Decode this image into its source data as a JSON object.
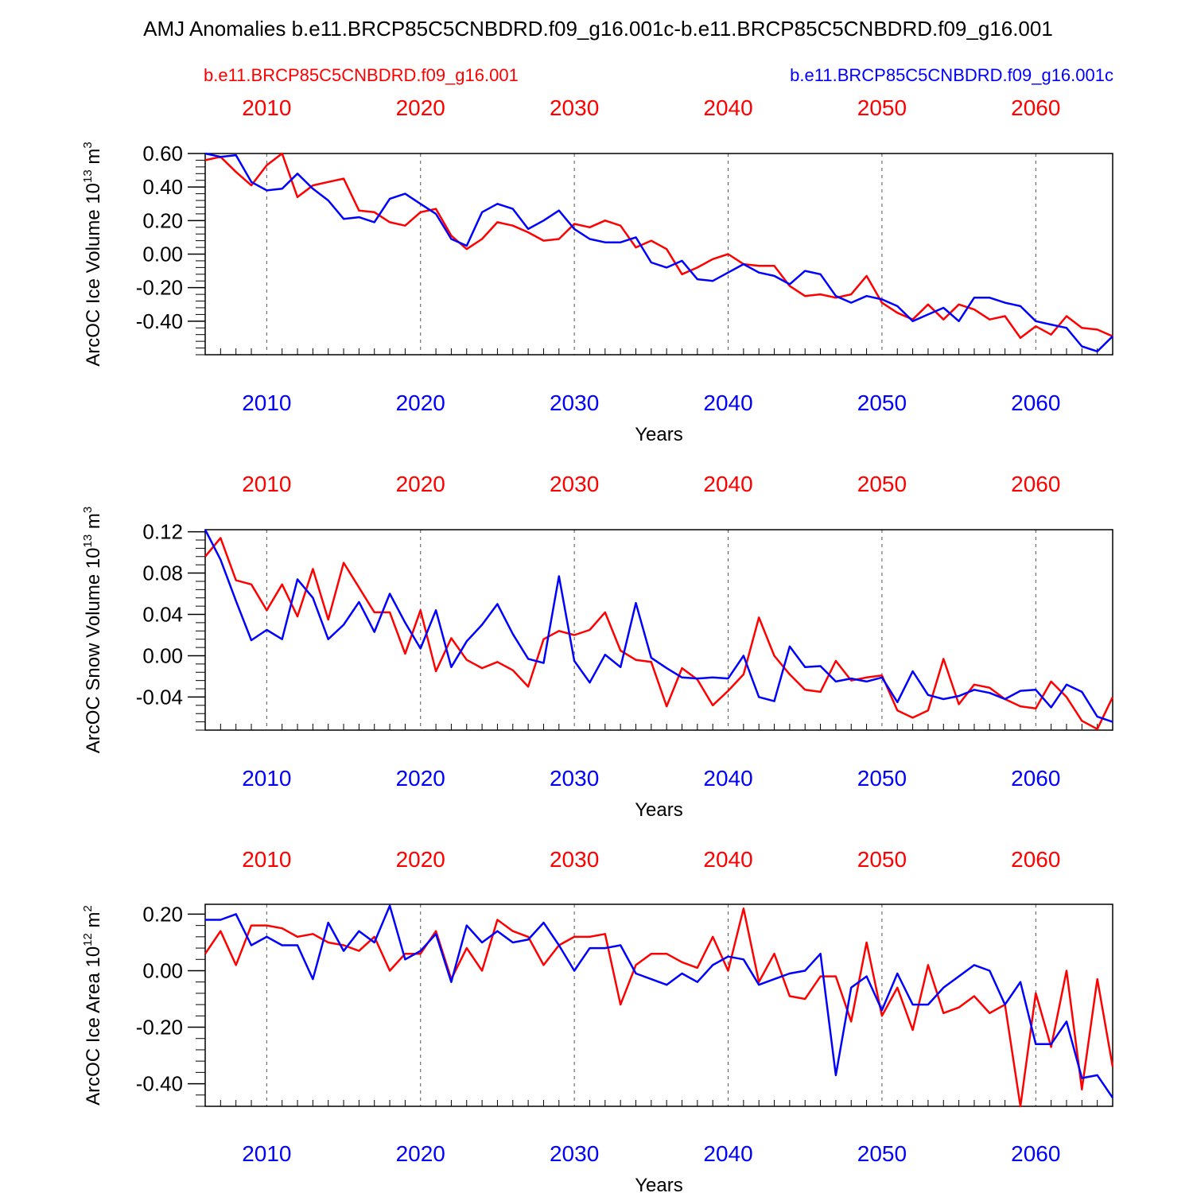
{
  "title": "AMJ Anomalies b.e11.BRCP85C5CNBDRD.f09_g16.001c-b.e11.BRCP85C5CNBDRD.f09_g16.001",
  "legend": {
    "red_label": "b.e11.BRCP85C5CNBDRD.f09_g16.001",
    "blue_label": "b.e11.BRCP85C5CNBDRD.f09_g16.001c"
  },
  "colors": {
    "red": "#ff0000",
    "blue": "#0000ff",
    "axis": "#000000",
    "grid": "#555555"
  },
  "chart_data": [
    {
      "type": "line",
      "ylabel": "ArcOC Ice Volume 10",
      "ylabel_exp": "13",
      "ylabel_unit": " m",
      "ylabel_unit_exp": "3",
      "xlabel": "Years",
      "xlim": [
        2006,
        2065
      ],
      "ylim": [
        -0.6,
        0.6
      ],
      "yticks": [
        0.6,
        0.4,
        0.2,
        0.0,
        -0.2,
        -0.4
      ],
      "ytick_labels": [
        "0.60",
        "0.40",
        "0.20",
        "0.00",
        "-0.20",
        "-0.40"
      ],
      "yminor_step": 0.04,
      "xticks": [
        2010,
        2020,
        2030,
        2040,
        2050,
        2060
      ],
      "xtick_labels": [
        "2010",
        "2020",
        "2030",
        "2040",
        "2050",
        "2060"
      ],
      "x_start": 2006,
      "series": [
        {
          "name": "b.e11.BRCP85C5CNBDRD.f09_g16.001",
          "color": "red",
          "values": [
            0.56,
            0.58,
            0.49,
            0.41,
            0.53,
            0.6,
            0.34,
            0.41,
            0.43,
            0.45,
            0.26,
            0.25,
            0.19,
            0.17,
            0.25,
            0.27,
            0.11,
            0.03,
            0.09,
            0.19,
            0.17,
            0.13,
            0.08,
            0.09,
            0.18,
            0.16,
            0.2,
            0.17,
            0.04,
            0.08,
            0.03,
            -0.12,
            -0.08,
            -0.03,
            0.0,
            -0.06,
            -0.07,
            -0.07,
            -0.19,
            -0.25,
            -0.24,
            -0.26,
            -0.24,
            -0.13,
            -0.29,
            -0.35,
            -0.39,
            -0.3,
            -0.39,
            -0.3,
            -0.33,
            -0.39,
            -0.37,
            -0.5,
            -0.43,
            -0.48,
            -0.37,
            -0.44,
            -0.45,
            -0.49
          ]
        },
        {
          "name": "b.e11.BRCP85C5CNBDRD.f09_g16.001c",
          "color": "blue",
          "values": [
            0.6,
            0.58,
            0.59,
            0.43,
            0.38,
            0.39,
            0.48,
            0.39,
            0.32,
            0.21,
            0.22,
            0.19,
            0.33,
            0.36,
            0.3,
            0.24,
            0.09,
            0.05,
            0.25,
            0.3,
            0.27,
            0.15,
            0.2,
            0.26,
            0.15,
            0.09,
            0.07,
            0.07,
            0.1,
            -0.05,
            -0.08,
            -0.04,
            -0.15,
            -0.16,
            -0.11,
            -0.06,
            -0.11,
            -0.13,
            -0.18,
            -0.1,
            -0.12,
            -0.25,
            -0.29,
            -0.25,
            -0.27,
            -0.31,
            -0.4,
            -0.36,
            -0.32,
            -0.4,
            -0.26,
            -0.26,
            -0.29,
            -0.31,
            -0.4,
            -0.42,
            -0.44,
            -0.55,
            -0.58,
            -0.49
          ]
        }
      ]
    },
    {
      "type": "line",
      "ylabel": "ArcOC Snow Volume 10",
      "ylabel_exp": "13",
      "ylabel_unit": " m",
      "ylabel_unit_exp": "3",
      "xlabel": "Years",
      "xlim": [
        2006,
        2065
      ],
      "ylim": [
        -0.072,
        0.122
      ],
      "yticks": [
        0.12,
        0.08,
        0.04,
        0.0,
        -0.04
      ],
      "ytick_labels": [
        "0.12",
        "0.08",
        "0.04",
        "0.00",
        "-0.04"
      ],
      "yminor_step": 0.008,
      "xticks": [
        2010,
        2020,
        2030,
        2040,
        2050,
        2060
      ],
      "xtick_labels": [
        "2010",
        "2020",
        "2030",
        "2040",
        "2050",
        "2060"
      ],
      "x_start": 2006,
      "series": [
        {
          "name": "b.e11.BRCP85C5CNBDRD.f09_g16.001",
          "color": "red",
          "values": [
            0.096,
            0.114,
            0.073,
            0.069,
            0.044,
            0.069,
            0.038,
            0.084,
            0.035,
            0.09,
            0.066,
            0.042,
            0.042,
            0.002,
            0.044,
            -0.015,
            0.017,
            -0.004,
            -0.012,
            -0.006,
            -0.014,
            -0.03,
            0.016,
            0.024,
            0.02,
            0.025,
            0.042,
            0.005,
            -0.004,
            -0.006,
            -0.049,
            -0.012,
            -0.023,
            -0.048,
            -0.034,
            -0.018,
            0.037,
            0.0,
            -0.018,
            -0.033,
            -0.035,
            -0.005,
            -0.024,
            -0.021,
            -0.019,
            -0.053,
            -0.06,
            -0.053,
            -0.003,
            -0.047,
            -0.028,
            -0.031,
            -0.042,
            -0.049,
            -0.051,
            -0.025,
            -0.04,
            -0.063,
            -0.071,
            -0.04
          ]
        },
        {
          "name": "b.e11.BRCP85C5CNBDRD.f09_g16.001c",
          "color": "blue",
          "values": [
            0.122,
            0.093,
            0.053,
            0.015,
            0.025,
            0.016,
            0.074,
            0.056,
            0.016,
            0.03,
            0.052,
            0.023,
            0.06,
            0.032,
            0.007,
            0.044,
            -0.011,
            0.014,
            0.03,
            0.05,
            0.021,
            -0.003,
            -0.007,
            0.077,
            -0.005,
            -0.026,
            0.001,
            -0.011,
            0.051,
            -0.002,
            -0.012,
            -0.021,
            -0.022,
            -0.021,
            -0.022,
            0.0,
            -0.04,
            -0.044,
            0.009,
            -0.011,
            -0.01,
            -0.025,
            -0.022,
            -0.025,
            -0.021,
            -0.045,
            -0.015,
            -0.038,
            -0.042,
            -0.039,
            -0.033,
            -0.036,
            -0.042,
            -0.034,
            -0.033,
            -0.05,
            -0.028,
            -0.035,
            -0.059,
            -0.064
          ]
        }
      ]
    },
    {
      "type": "line",
      "ylabel": "ArcOC Ice Area 10",
      "ylabel_exp": "12",
      "ylabel_unit": " m",
      "ylabel_unit_exp": "2",
      "xlabel": "Years",
      "xlim": [
        2006,
        2065
      ],
      "ylim": [
        -0.48,
        0.235
      ],
      "yticks": [
        0.2,
        0.0,
        -0.2,
        -0.4
      ],
      "ytick_labels": [
        "0.20",
        "0.00",
        "-0.20",
        "-0.40"
      ],
      "yminor_step": 0.04,
      "xticks": [
        2010,
        2020,
        2030,
        2040,
        2050,
        2060
      ],
      "xtick_labels": [
        "2010",
        "2020",
        "2030",
        "2040",
        "2050",
        "2060"
      ],
      "x_start": 2006,
      "series": [
        {
          "name": "b.e11.BRCP85C5CNBDRD.f09_g16.001",
          "color": "red",
          "values": [
            0.06,
            0.14,
            0.02,
            0.16,
            0.16,
            0.15,
            0.12,
            0.13,
            0.1,
            0.09,
            0.07,
            0.12,
            0.0,
            0.06,
            0.06,
            0.14,
            -0.03,
            0.08,
            0.0,
            0.18,
            0.14,
            0.12,
            0.02,
            0.09,
            0.12,
            0.12,
            0.13,
            -0.12,
            0.02,
            0.06,
            0.06,
            0.03,
            0.01,
            0.12,
            0.0,
            0.22,
            -0.04,
            0.06,
            -0.09,
            -0.1,
            -0.02,
            -0.02,
            -0.18,
            0.1,
            -0.16,
            -0.06,
            -0.21,
            0.02,
            -0.15,
            -0.13,
            -0.09,
            -0.15,
            -0.12,
            -0.48,
            -0.08,
            -0.27,
            0.0,
            -0.42,
            -0.03,
            -0.34
          ]
        },
        {
          "name": "b.e11.BRCP85C5CNBDRD.f09_g16.001c",
          "color": "blue",
          "values": [
            0.18,
            0.18,
            0.2,
            0.09,
            0.12,
            0.09,
            0.09,
            -0.03,
            0.17,
            0.07,
            0.14,
            0.1,
            0.23,
            0.04,
            0.07,
            0.13,
            -0.04,
            0.16,
            0.1,
            0.14,
            0.1,
            0.11,
            0.17,
            0.09,
            0.0,
            0.08,
            0.08,
            0.09,
            -0.01,
            -0.03,
            -0.05,
            -0.01,
            -0.04,
            0.02,
            0.05,
            0.04,
            -0.05,
            -0.03,
            -0.01,
            0.0,
            0.06,
            -0.37,
            -0.06,
            -0.02,
            -0.14,
            -0.01,
            -0.12,
            -0.12,
            -0.06,
            -0.02,
            0.02,
            0.0,
            -0.12,
            -0.04,
            -0.26,
            -0.26,
            -0.18,
            -0.38,
            -0.37,
            -0.45
          ]
        }
      ]
    }
  ]
}
